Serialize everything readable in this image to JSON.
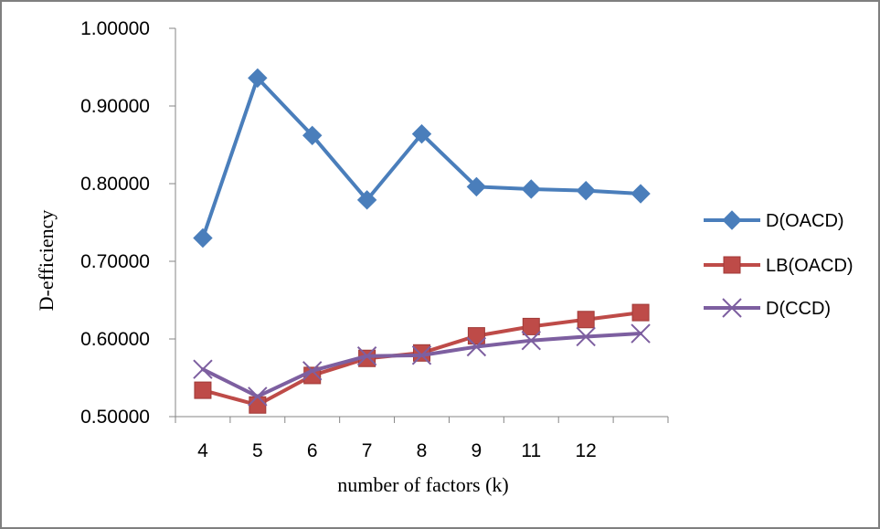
{
  "chart_data": {
    "type": "line",
    "xlabel": "number of factors (k)",
    "ylabel": "D-efficiency",
    "categories": [
      "4",
      "5",
      "6",
      "7",
      "8",
      "9",
      "11",
      "12",
      ""
    ],
    "ylim": [
      0.5,
      1.0
    ],
    "ytick_values": [
      0.5,
      0.6,
      0.7,
      0.8,
      0.9,
      1.0
    ],
    "ytick_labels": [
      "0.50000",
      "0.60000",
      "0.70000",
      "0.80000",
      "0.90000",
      "1.00000"
    ],
    "grid": false,
    "legend_position": "right",
    "series": [
      {
        "name": "D(OACD)",
        "color": "#4a7ebb",
        "marker": "diamond",
        "values": [
          0.73,
          0.936,
          0.862,
          0.779,
          0.864,
          0.796,
          0.793,
          0.791,
          0.787
        ]
      },
      {
        "name": "LB(OACD)",
        "color": "#be4b48",
        "marker": "square",
        "values": [
          0.534,
          0.515,
          0.553,
          0.575,
          0.582,
          0.604,
          0.616,
          0.625,
          0.634
        ]
      },
      {
        "name": "D(CCD)",
        "color": "#7d5fa0",
        "marker": "x",
        "values": [
          0.561,
          0.526,
          0.559,
          0.578,
          0.579,
          0.59,
          0.598,
          0.603,
          0.607
        ]
      }
    ]
  }
}
